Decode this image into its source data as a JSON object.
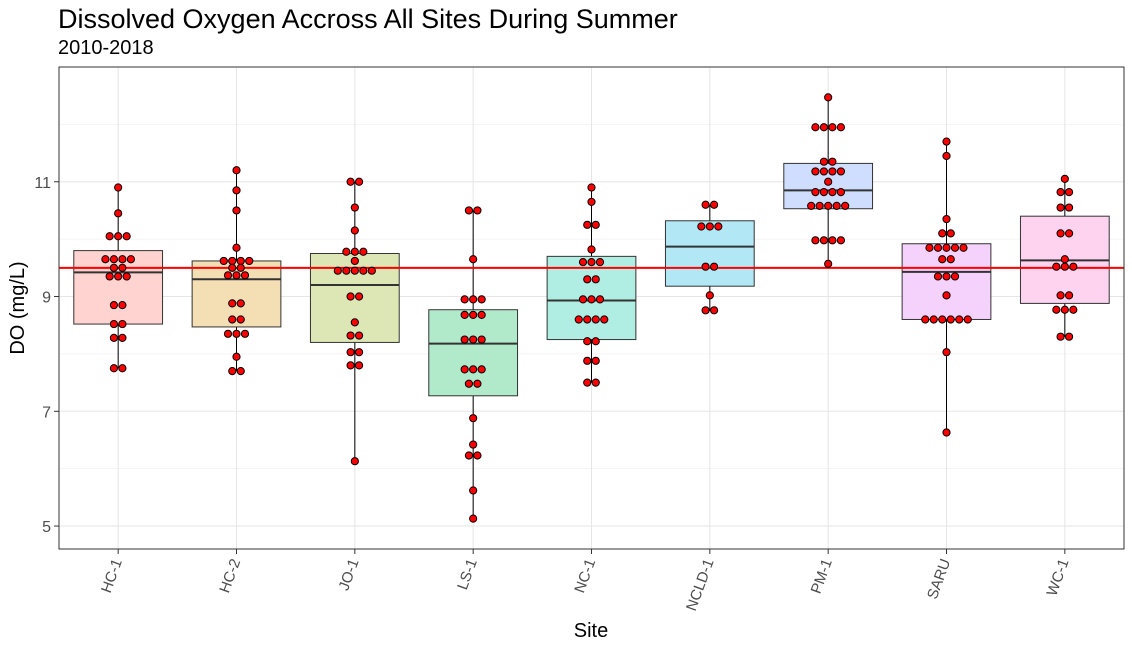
{
  "chart_data": {
    "type": "box",
    "title": "Dissolved Oxygen Accross All Sites During Summer",
    "subtitle": "2010-2018",
    "xlabel": "Site",
    "ylabel": "DO (mg/L)",
    "ylim": [
      4.6,
      13.0
    ],
    "yticks": [
      5,
      7,
      9,
      11
    ],
    "grid": true,
    "reference_line": {
      "y": 9.5,
      "color": "#ff0000"
    },
    "categories": [
      "HC-1",
      "HC-2",
      "JO-1",
      "LS-1",
      "NC-1",
      "NCLD-1",
      "PM-1",
      "SARU",
      "WC-1"
    ],
    "boxes": [
      {
        "site": "HC-1",
        "fill": "#ffd3d0",
        "min": 7.75,
        "q1": 8.52,
        "median": 9.42,
        "q3": 9.8,
        "max": 10.9
      },
      {
        "site": "HC-2",
        "fill": "#f4deb4",
        "min": 7.7,
        "q1": 8.47,
        "median": 9.3,
        "q3": 9.62,
        "max": 11.2
      },
      {
        "site": "JO-1",
        "fill": "#dde6b5",
        "min": 6.13,
        "q1": 8.2,
        "median": 9.2,
        "q3": 9.75,
        "max": 11.0
      },
      {
        "site": "LS-1",
        "fill": "#b1eacb",
        "min": 5.13,
        "q1": 7.27,
        "median": 8.18,
        "q3": 8.77,
        "max": 10.5
      },
      {
        "site": "NC-1",
        "fill": "#b0ede2",
        "min": 7.5,
        "q1": 8.25,
        "median": 8.93,
        "q3": 9.7,
        "max": 10.9
      },
      {
        "site": "NCLD-1",
        "fill": "#b2e8f5",
        "min": 8.75,
        "q1": 9.18,
        "median": 9.87,
        "q3": 10.32,
        "max": 10.6
      },
      {
        "site": "PM-1",
        "fill": "#cfddfe",
        "min": 9.57,
        "q1": 10.53,
        "median": 10.85,
        "q3": 11.32,
        "max": 12.47
      },
      {
        "site": "SARU",
        "fill": "#f4d2fc",
        "min": 6.63,
        "q1": 8.6,
        "median": 9.43,
        "q3": 9.92,
        "max": 11.7
      },
      {
        "site": "WC-1",
        "fill": "#fdd3ef",
        "min": 8.3,
        "q1": 8.88,
        "median": 9.63,
        "q3": 10.4,
        "max": 11.05
      }
    ],
    "points": [
      {
        "site": "HC-1",
        "values": [
          10.9,
          10.45,
          10.05,
          10.05,
          10.05,
          9.65,
          9.65,
          9.65,
          9.65,
          9.5,
          9.5,
          9.35,
          9.35,
          9.35,
          8.85,
          8.85,
          8.52,
          8.52,
          8.28,
          8.28,
          7.75,
          7.75
        ]
      },
      {
        "site": "HC-2",
        "values": [
          11.2,
          10.85,
          10.5,
          9.85,
          9.62,
          9.62,
          9.62,
          9.62,
          9.5,
          9.5,
          9.37,
          9.37,
          9.37,
          8.88,
          8.88,
          8.6,
          8.6,
          8.35,
          8.35,
          8.35,
          7.95,
          7.7,
          7.7
        ]
      },
      {
        "site": "JO-1",
        "values": [
          11.0,
          11.0,
          10.55,
          10.15,
          9.78,
          9.78,
          9.78,
          9.62,
          9.45,
          9.45,
          9.45,
          9.45,
          9.45,
          9.0,
          9.0,
          8.55,
          8.32,
          8.32,
          8.03,
          8.03,
          7.8,
          7.8,
          6.13
        ]
      },
      {
        "site": "LS-1",
        "values": [
          10.5,
          10.5,
          9.65,
          8.95,
          8.95,
          8.95,
          8.68,
          8.68,
          8.68,
          8.25,
          8.25,
          8.25,
          7.73,
          7.73,
          7.73,
          7.48,
          7.48,
          6.88,
          6.42,
          6.23,
          6.23,
          5.62,
          5.13
        ]
      },
      {
        "site": "NC-1",
        "values": [
          10.9,
          10.65,
          10.25,
          10.25,
          9.82,
          9.6,
          9.6,
          9.6,
          9.3,
          9.3,
          8.95,
          8.95,
          8.95,
          8.6,
          8.6,
          8.6,
          8.6,
          8.22,
          8.22,
          7.88,
          7.88,
          7.5,
          7.5
        ]
      },
      {
        "site": "NCLD-1",
        "values": [
          10.6,
          10.6,
          10.22,
          10.22,
          10.22,
          9.52,
          9.52,
          9.02,
          8.76,
          8.76
        ]
      },
      {
        "site": "PM-1",
        "values": [
          12.47,
          11.95,
          11.95,
          11.95,
          11.95,
          11.35,
          11.35,
          11.18,
          11.18,
          11.18,
          11.18,
          11.0,
          10.82,
          10.82,
          10.82,
          10.82,
          10.58,
          10.58,
          10.58,
          10.58,
          10.58,
          9.98,
          9.98,
          9.98,
          9.98,
          9.57
        ]
      },
      {
        "site": "SARU",
        "values": [
          11.7,
          11.45,
          10.35,
          10.1,
          10.1,
          9.85,
          9.85,
          9.85,
          9.85,
          9.85,
          9.65,
          9.65,
          9.35,
          9.35,
          9.35,
          9.02,
          8.6,
          8.6,
          8.6,
          8.6,
          8.6,
          8.6,
          8.03,
          6.63
        ]
      },
      {
        "site": "WC-1",
        "values": [
          11.05,
          10.82,
          10.82,
          10.55,
          10.55,
          10.1,
          10.1,
          9.65,
          9.52,
          9.52,
          9.52,
          9.02,
          9.02,
          8.77,
          8.77,
          8.77,
          8.3,
          8.3
        ]
      }
    ]
  }
}
